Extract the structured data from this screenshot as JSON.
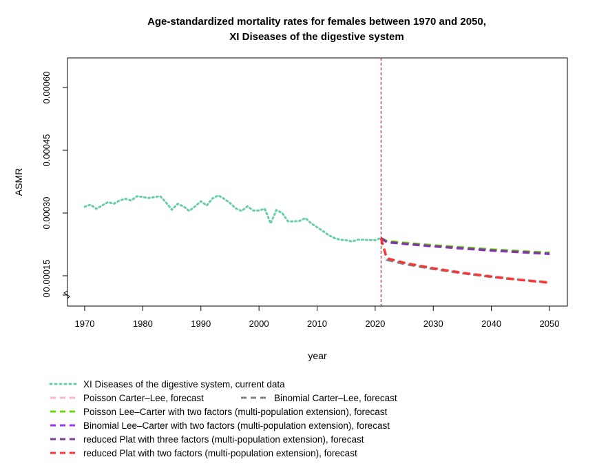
{
  "chart_data": {
    "type": "line",
    "title": "Age-standardized mortality rates for females between 1970 and 2050,",
    "subtitle": "XI Diseases of the digestive system",
    "xlabel": "year",
    "ylabel": "ASMR",
    "xlim": [
      1970,
      2050
    ],
    "ylim": [
      0.0001,
      0.00065
    ],
    "x_ticks": [
      "1970",
      "1980",
      "1990",
      "2000",
      "2010",
      "2020",
      "2030",
      "2040",
      "2050"
    ],
    "y_ticks": [
      "0.00015",
      "0.00030",
      "0.00045",
      "0.00060"
    ],
    "y_axis_break_label": "0",
    "vline": {
      "x": 2021,
      "color": "#8b0000"
    },
    "grid": false,
    "legend_position": "bottom",
    "series": [
      {
        "name": "XI Diseases of the digestive system, current data",
        "color": "#66cdaa",
        "style": "dotted",
        "x": [
          1970,
          1971,
          1972,
          1973,
          1974,
          1975,
          1976,
          1977,
          1978,
          1979,
          1980,
          1981,
          1982,
          1983,
          1984,
          1985,
          1986,
          1987,
          1988,
          1989,
          1990,
          1991,
          1992,
          1993,
          1994,
          1995,
          1996,
          1997,
          1998,
          1999,
          2000,
          2001,
          2002,
          2003,
          2004,
          2005,
          2006,
          2007,
          2008,
          2009,
          2010,
          2011,
          2012,
          2013,
          2014,
          2015,
          2016,
          2017,
          2018,
          2019,
          2020,
          2021
        ],
        "values": [
          0.000315,
          0.00032,
          0.00031,
          0.000318,
          0.000326,
          0.000322,
          0.00033,
          0.000334,
          0.00033,
          0.00034,
          0.000338,
          0.000336,
          0.000338,
          0.00034,
          0.000325,
          0.000308,
          0.000322,
          0.000316,
          0.000305,
          0.000316,
          0.000328,
          0.000318,
          0.000335,
          0.000342,
          0.000334,
          0.000324,
          0.000311,
          0.000305,
          0.000316,
          0.000306,
          0.000306,
          0.00031,
          0.000275,
          0.000307,
          0.0003,
          0.00028,
          0.00028,
          0.000281,
          0.000288,
          0.000275,
          0.000266,
          0.000257,
          0.000247,
          0.00024,
          0.000236,
          0.000235,
          0.000232,
          0.000236,
          0.000236,
          0.000235,
          0.000235,
          0.00024
        ]
      },
      {
        "name": "Poisson Carter–Lee, forecast",
        "color": "#ffb6c1",
        "style": "dashed",
        "x": [
          2021,
          2022,
          2025,
          2030,
          2035,
          2040,
          2045,
          2050
        ],
        "values": [
          0.00024,
          0.00019,
          0.00018,
          0.000168,
          0.000158,
          0.000149,
          0.000141,
          0.000135
        ]
      },
      {
        "name": "Binomial Carter–Lee, forecast",
        "color": "#808080",
        "style": "dashed",
        "x": [
          2021,
          2022,
          2025,
          2030,
          2035,
          2040,
          2045,
          2050
        ],
        "values": [
          0.00024,
          0.000188,
          0.000178,
          0.000166,
          0.000156,
          0.000147,
          0.00014,
          0.000134
        ]
      },
      {
        "name": "Poisson Lee–Carter with two factors (multi-population extension), forecast",
        "color": "#66dd00",
        "style": "dashed",
        "x": [
          2021,
          2022,
          2025,
          2030,
          2035,
          2040,
          2045,
          2050
        ],
        "values": [
          0.00024,
          0.000233,
          0.000229,
          0.000223,
          0.000218,
          0.000213,
          0.000209,
          0.000205
        ]
      },
      {
        "name": "Binomial Lee–Carter with two factors (multi-population extension), forecast",
        "color": "#9b30ff",
        "style": "dashed",
        "x": [
          2021,
          2022,
          2025,
          2030,
          2035,
          2040,
          2045,
          2050
        ],
        "values": [
          0.00024,
          0.00023,
          0.000226,
          0.00022,
          0.000215,
          0.00021,
          0.000206,
          0.000202
        ]
      },
      {
        "name": "reduced Plat with three factors (multi-population extension), forecast",
        "color": "#7d3c98",
        "style": "dashed",
        "x": [
          2021,
          2022,
          2025,
          2030,
          2035,
          2040,
          2045,
          2050
        ],
        "values": [
          0.00024,
          0.000231,
          0.000227,
          0.000221,
          0.000216,
          0.000211,
          0.000207,
          0.000203
        ]
      },
      {
        "name": "reduced Plat with two factors (multi-population extension), forecast",
        "color": "#ff3333",
        "style": "dashed",
        "x": [
          2021,
          2022,
          2025,
          2030,
          2035,
          2040,
          2045,
          2050
        ],
        "values": [
          0.00024,
          0.000192,
          0.000181,
          0.000168,
          0.000157,
          0.000148,
          0.00014,
          0.000133
        ]
      }
    ],
    "legend_rows": [
      [
        0
      ],
      [
        1,
        2
      ],
      [
        3
      ],
      [
        4
      ],
      [
        5
      ],
      [
        6
      ]
    ]
  }
}
